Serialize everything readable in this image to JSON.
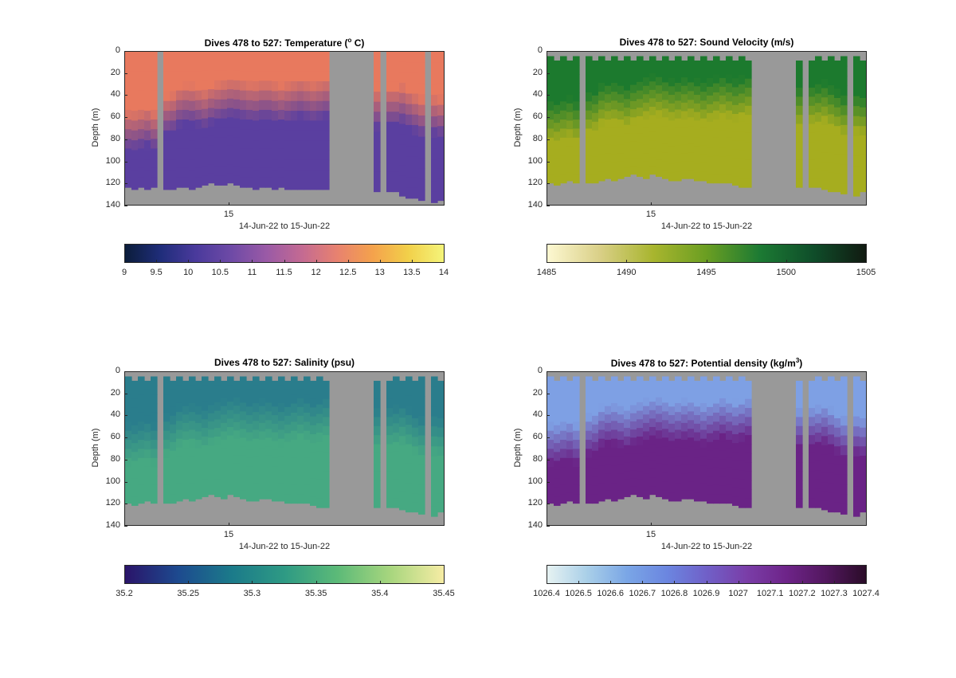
{
  "x_axis_label": "14-Jun-22 to 15-Jun-22",
  "x_tick": "15",
  "y_axis_label": "Depth (m)",
  "y_ticks": [
    "0",
    "20",
    "40",
    "60",
    "80",
    "100",
    "120",
    "140"
  ],
  "panels": [
    {
      "title_main": "Dives 478 to 527: Temperature (",
      "title_sup": "o",
      "title_tail": " C)",
      "colorbar_ticks": [
        "9",
        "9.5",
        "10",
        "10.5",
        "11",
        "11.5",
        "12",
        "12.5",
        "13",
        "13.5",
        "14"
      ],
      "colorbar_colors": [
        "#0b1d3a",
        "#1f2d7a",
        "#4a3a9c",
        "#6e4aa6",
        "#9a5aa6",
        "#c46a92",
        "#e8826f",
        "#f4a24c",
        "#f2d04a",
        "#f4f47a"
      ],
      "colors": {
        "upper": "#e8795e",
        "lower": "#5a3fa0",
        "gap": "#999999"
      }
    },
    {
      "title_main": "Dives 478 to 527: Sound Velocity (m/s)",
      "title_sup": "",
      "title_tail": "",
      "colorbar_ticks": [
        "1485",
        "1490",
        "1495",
        "1500",
        "1505"
      ],
      "colorbar_colors": [
        "#fdf8d2",
        "#d9cf86",
        "#a8b52e",
        "#6a9e22",
        "#1c7a33",
        "#0f4e2a",
        "#111a11"
      ],
      "colors": {
        "upper": "#1c7a2e",
        "lower": "#a6ad1f",
        "gap": "#999999"
      }
    },
    {
      "title_main": "Dives 478 to 527: Salinity (psu)",
      "title_sup": "",
      "title_tail": "",
      "colorbar_ticks": [
        "35.2",
        "35.25",
        "35.3",
        "35.35",
        "35.4",
        "35.45"
      ],
      "colorbar_colors": [
        "#2a1469",
        "#1d4a8f",
        "#1b7a8a",
        "#2e9a84",
        "#5cba78",
        "#a8d67e",
        "#f6eca4"
      ],
      "colors": {
        "upper": "#2a7d8c",
        "lower": "#46a982",
        "gap": "#999999"
      }
    },
    {
      "title_main": "Dives 478 to 527: Potential density (kg/m",
      "title_sup": "3",
      "title_tail": ")",
      "colorbar_ticks": [
        "1026.4",
        "1026.5",
        "1026.6",
        "1026.7",
        "1026.8",
        "1026.9",
        "1027",
        "1027.1",
        "1027.2",
        "1027.3",
        "1027.4"
      ],
      "colorbar_colors": [
        "#e6f2f2",
        "#a9cfe8",
        "#7aa6e6",
        "#6b86e0",
        "#7060c8",
        "#7a3ea8",
        "#6e2489",
        "#52175e",
        "#2a0c28"
      ],
      "colors": {
        "upper": "#7ea0e4",
        "lower": "#6a2386",
        "gap": "#999999"
      }
    }
  ],
  "chart_data": [
    {
      "type": "heatmap",
      "title": "Dives 478 to 527: Temperature (o C)",
      "xlabel": "14-Jun-22 to 15-Jun-22",
      "ylabel": "Depth (m)",
      "ylim": [
        0,
        140
      ],
      "y_reversed": true,
      "color_range": [
        9,
        14
      ],
      "x_ticks": [
        "15"
      ],
      "columns": 50,
      "thermocline_depth_m": [
        72,
        72,
        70,
        68,
        72,
        74,
        58,
        56,
        50,
        48,
        48,
        50,
        52,
        48,
        46,
        44,
        42,
        42,
        44,
        46,
        46,
        44,
        44,
        46,
        48,
        46,
        44,
        42,
        44,
        46,
        44,
        42,
        40,
        38,
        36,
        34,
        34,
        36,
        46,
        52,
        54,
        50,
        50,
        48,
        52,
        56,
        60,
        58,
        58,
        60
      ],
      "max_depth_m": [
        124,
        126,
        124,
        126,
        124,
        128,
        126,
        126,
        124,
        124,
        126,
        124,
        122,
        120,
        122,
        122,
        120,
        122,
        124,
        124,
        126,
        124,
        124,
        126,
        124,
        126,
        126,
        126,
        126,
        126,
        126,
        126,
        126,
        126,
        130,
        128,
        126,
        126,
        126,
        128,
        128,
        128,
        128,
        132,
        134,
        134,
        136,
        138,
        138,
        136
      ],
      "no_data_columns": [
        5,
        32,
        33,
        34,
        35,
        36,
        37,
        38,
        40,
        47
      ]
    },
    {
      "type": "heatmap",
      "title": "Dives 478 to 527: Sound Velocity (m/s)",
      "xlabel": "14-Jun-22 to 15-Jun-22",
      "ylabel": "Depth (m)",
      "ylim": [
        0,
        140
      ],
      "y_reversed": true,
      "color_range": [
        1485,
        1505
      ],
      "x_ticks": [
        "15"
      ],
      "columns": 50,
      "thermocline_depth_m": [
        64,
        64,
        62,
        60,
        64,
        66,
        56,
        54,
        48,
        46,
        46,
        48,
        50,
        46,
        44,
        42,
        40,
        40,
        42,
        44,
        44,
        42,
        42,
        44,
        46,
        44,
        42,
        40,
        42,
        44,
        42,
        40,
        38,
        36,
        34,
        32,
        32,
        34,
        44,
        50,
        52,
        48,
        48,
        46,
        50,
        54,
        58,
        56,
        56,
        58
      ],
      "max_depth_m": [
        120,
        122,
        120,
        118,
        120,
        124,
        120,
        120,
        118,
        116,
        118,
        116,
        114,
        112,
        114,
        116,
        112,
        114,
        116,
        118,
        118,
        116,
        116,
        118,
        118,
        120,
        120,
        120,
        120,
        122,
        124,
        124,
        126,
        124,
        126,
        124,
        122,
        120,
        122,
        124,
        124,
        124,
        124,
        126,
        128,
        128,
        130,
        132,
        132,
        128
      ],
      "no_data_columns": [
        5,
        32,
        33,
        34,
        35,
        36,
        37,
        38,
        40,
        47
      ]
    },
    {
      "type": "heatmap",
      "title": "Dives 478 to 527: Salinity (psu)",
      "xlabel": "14-Jun-22 to 15-Jun-22",
      "ylabel": "Depth (m)",
      "ylim": [
        0,
        140
      ],
      "y_reversed": true,
      "color_range": [
        35.2,
        35.45
      ],
      "x_ticks": [
        "15"
      ],
      "columns": 50,
      "thermocline_depth_m": [
        66,
        66,
        64,
        62,
        66,
        68,
        58,
        56,
        50,
        48,
        48,
        50,
        52,
        48,
        46,
        44,
        42,
        42,
        44,
        46,
        46,
        44,
        44,
        46,
        48,
        46,
        44,
        42,
        44,
        46,
        44,
        42,
        40,
        38,
        36,
        34,
        34,
        36,
        46,
        52,
        54,
        50,
        50,
        48,
        52,
        56,
        60,
        58,
        58,
        60
      ],
      "max_depth_m": [
        120,
        122,
        120,
        118,
        120,
        124,
        120,
        120,
        118,
        116,
        118,
        116,
        114,
        112,
        114,
        116,
        112,
        114,
        116,
        118,
        118,
        116,
        116,
        118,
        118,
        120,
        120,
        120,
        120,
        122,
        124,
        124,
        126,
        124,
        126,
        124,
        122,
        120,
        122,
        124,
        124,
        124,
        124,
        126,
        128,
        128,
        130,
        132,
        132,
        128
      ],
      "no_data_columns": [
        5,
        32,
        33,
        34,
        35,
        36,
        37,
        38,
        40,
        47
      ]
    },
    {
      "type": "heatmap",
      "title": "Dives 478 to 527: Potential density (kg/m3)",
      "xlabel": "14-Jun-22 to 15-Jun-22",
      "ylabel": "Depth (m)",
      "ylim": [
        0,
        140
      ],
      "y_reversed": true,
      "color_range": [
        1026.4,
        1027.4
      ],
      "x_ticks": [
        "15"
      ],
      "columns": 50,
      "thermocline_depth_m": [
        66,
        66,
        64,
        62,
        66,
        68,
        58,
        56,
        50,
        48,
        48,
        50,
        52,
        48,
        46,
        44,
        42,
        42,
        44,
        46,
        46,
        44,
        44,
        46,
        48,
        46,
        44,
        42,
        44,
        46,
        44,
        42,
        40,
        38,
        36,
        34,
        34,
        36,
        46,
        52,
        54,
        50,
        50,
        48,
        52,
        56,
        60,
        58,
        58,
        60
      ],
      "max_depth_m": [
        120,
        122,
        120,
        118,
        120,
        124,
        120,
        120,
        118,
        116,
        118,
        116,
        114,
        112,
        114,
        116,
        112,
        114,
        116,
        118,
        118,
        116,
        116,
        118,
        118,
        120,
        120,
        120,
        120,
        122,
        124,
        124,
        126,
        124,
        126,
        124,
        122,
        120,
        122,
        124,
        124,
        124,
        124,
        126,
        128,
        128,
        130,
        132,
        132,
        128
      ],
      "no_data_columns": [
        5,
        32,
        33,
        34,
        35,
        36,
        37,
        38,
        40,
        47
      ]
    }
  ]
}
